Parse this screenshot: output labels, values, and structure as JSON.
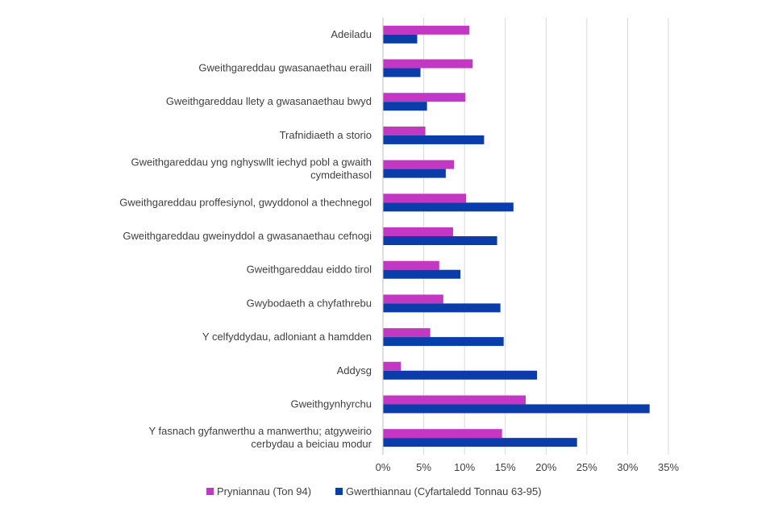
{
  "chart_data": {
    "type": "bar",
    "orientation": "horizontal",
    "title": "",
    "xlabel": "",
    "ylabel": "",
    "xlim": [
      0,
      35
    ],
    "x_ticks": [
      "0%",
      "5%",
      "10%",
      "15%",
      "20%",
      "25%",
      "30%",
      "35%"
    ],
    "grid": true,
    "legend_position": "bottom",
    "categories": [
      [
        "Adeiladu"
      ],
      [
        "Gweithgareddau gwasanaethau eraill"
      ],
      [
        "Gweithgareddau llety a gwasanaethau bwyd"
      ],
      [
        "Trafnidiaeth a storio"
      ],
      [
        "Gweithgareddau yng nghyswllt iechyd pobl a gwaith",
        "cymdeithasol"
      ],
      [
        "Gweithgareddau proffesiynol, gwyddonol a thechnegol"
      ],
      [
        "Gweithgareddau gweinyddol a gwasanaethau cefnogi"
      ],
      [
        "Gweithgareddau eiddo tirol"
      ],
      [
        "Gwybodaeth a chyfathrebu"
      ],
      [
        "Y celfyddydau, adloniant a hamdden"
      ],
      [
        "Addysg"
      ],
      [
        "Gweithgynhyrchu"
      ],
      [
        "Y fasnach gyfanwerthu a manwerthu; atgyweirio",
        "cerbydau a beiciau modur"
      ]
    ],
    "series": [
      {
        "name": "Pryniannau (Ton 94)",
        "color": "#C238C2",
        "values": [
          10.6,
          11.0,
          10.1,
          5.2,
          8.7,
          10.2,
          8.6,
          6.9,
          7.4,
          5.8,
          2.2,
          17.5,
          14.6
        ]
      },
      {
        "name": "Gwerthiannau (Cyfartaledd Tonnau 63-95)",
        "color": "#0A3CAA",
        "values": [
          4.2,
          4.6,
          5.4,
          12.4,
          7.7,
          16.0,
          14.0,
          9.5,
          14.4,
          14.8,
          18.9,
          32.7,
          23.8
        ]
      }
    ]
  },
  "colors": {
    "gridline": "#d9d9d9",
    "axis": "#bfbfbf",
    "text": "#404040"
  }
}
